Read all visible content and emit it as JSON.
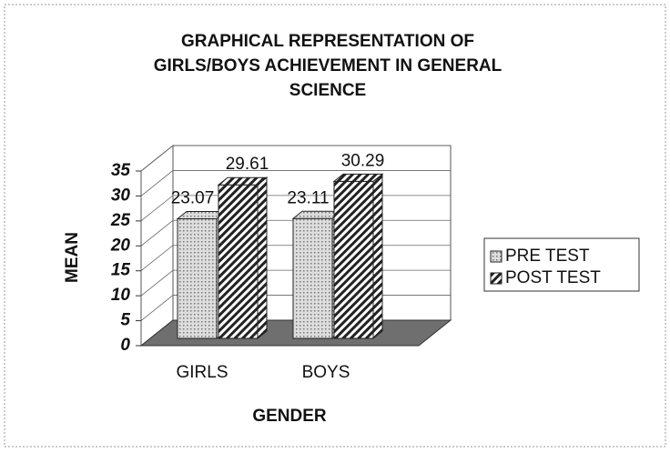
{
  "chart_data": {
    "type": "bar3d",
    "title": "GRAPHICAL REPRESENTATION OF GIRLS/BOYS ACHIEVEMENT IN GENERAL SCIENCE",
    "x_label": "GENDER",
    "y_label": "MEAN",
    "categories": [
      "GIRLS",
      "BOYS"
    ],
    "series": [
      {
        "name": "PRE TEST",
        "color": "#c4c4c4",
        "values": [
          23.07,
          23.11
        ]
      },
      {
        "name": "POST TEST",
        "color": "#222222",
        "values": [
          29.61,
          30.29
        ]
      }
    ],
    "ylim": [
      0,
      35
    ],
    "yticks": [
      0,
      5,
      10,
      15,
      20,
      25,
      30,
      35
    ],
    "grid": true,
    "legend": "right"
  }
}
